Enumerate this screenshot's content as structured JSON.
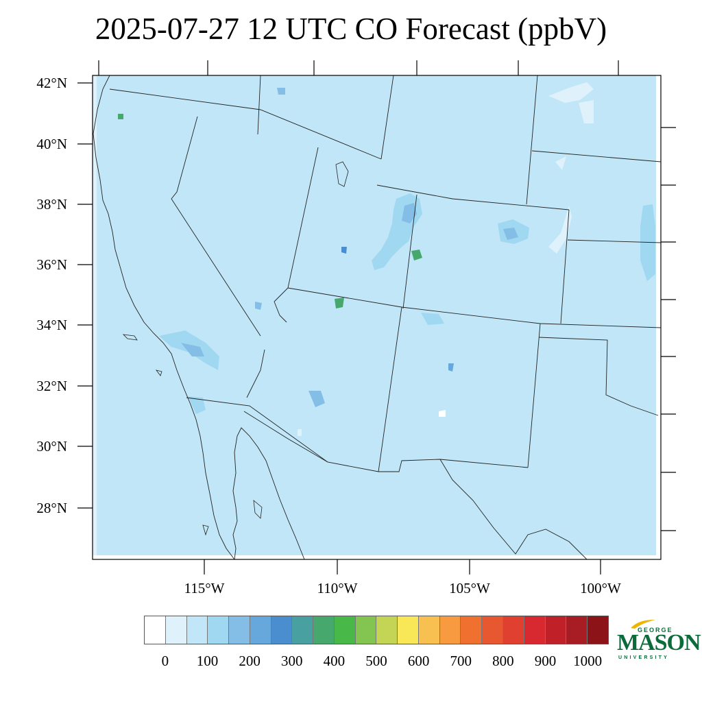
{
  "title": "2025-07-27 12 UTC CO Forecast (ppbV)",
  "map": {
    "latitude_labels": [
      "42°N",
      "40°N",
      "38°N",
      "36°N",
      "34°N",
      "32°N",
      "30°N",
      "28°N"
    ],
    "longitude_labels": [
      "115°W",
      "110°W",
      "105°W",
      "100°W"
    ],
    "background_level_color": "#c0e6f7"
  },
  "colorbar": {
    "colors": [
      "#ffffff",
      "#dff2fb",
      "#c0e6f7",
      "#a0d8f2",
      "#84bde6",
      "#67a8dc",
      "#4a8ed0",
      "#48a0a0",
      "#46a86c",
      "#48b848",
      "#84c450",
      "#c4d454",
      "#f8e858",
      "#f8c050",
      "#f89a40",
      "#f07030",
      "#e85830",
      "#e04030",
      "#d82830",
      "#c02028",
      "#a81c24",
      "#8c1418"
    ],
    "labels": [
      "0",
      "100",
      "200",
      "300",
      "400",
      "500",
      "600",
      "700",
      "800",
      "900",
      "1000"
    ]
  },
  "logo": {
    "line1": "GEORGE",
    "line2": "MASON",
    "line3": "UNIVERSITY"
  }
}
